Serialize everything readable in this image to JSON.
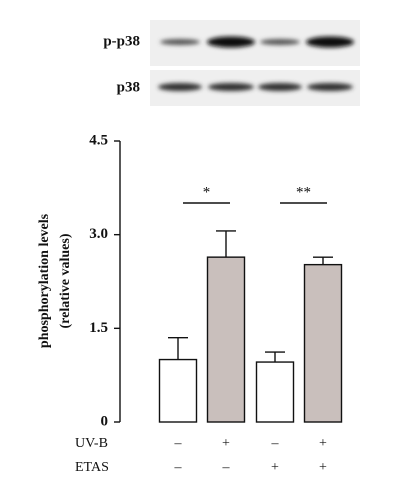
{
  "blot": {
    "labels": [
      "p-p38",
      "p38"
    ]
  },
  "chart_data": {
    "type": "bar",
    "ylabel": [
      "phosphorylation levels",
      "(relative values)"
    ],
    "categories": [
      null,
      null,
      null,
      null
    ],
    "series": [
      {
        "values": [
          1.0,
          2.64,
          0.96,
          2.52
        ],
        "errors": [
          0.35,
          0.42,
          0.16,
          0.12
        ],
        "colors": [
          "#ffffff",
          "#c9bfbc",
          "#ffffff",
          "#c9bfbc"
        ]
      }
    ],
    "ylim": [
      0,
      4.5
    ],
    "yticks": [
      0,
      1.5,
      {
        "value": 3,
        "label": "3.0"
      },
      4.5
    ],
    "annotations": [
      "*",
      "**"
    ],
    "conditions": [
      {
        "name": "UV-B",
        "values": [
          "–",
          "+",
          "–",
          "+"
        ]
      },
      {
        "name": "ETAS",
        "values": [
          "–",
          "–",
          "+",
          "+"
        ]
      }
    ]
  }
}
